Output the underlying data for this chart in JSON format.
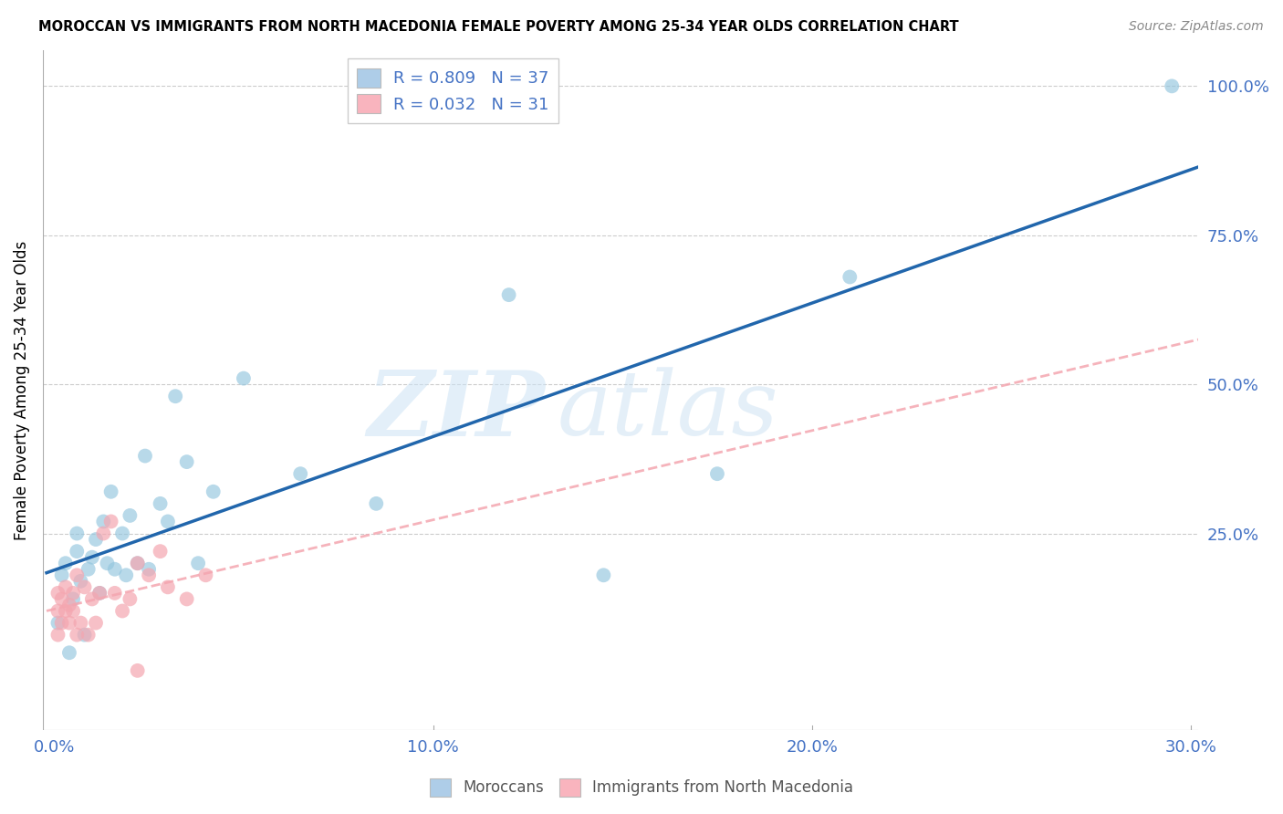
{
  "title": "MOROCCAN VS IMMIGRANTS FROM NORTH MACEDONIA FEMALE POVERTY AMONG 25-34 YEAR OLDS CORRELATION CHART",
  "source": "Source: ZipAtlas.com",
  "ylabel": "Female Poverty Among 25-34 Year Olds",
  "moroccans_R": 0.809,
  "moroccans_N": 37,
  "macedonians_R": 0.032,
  "macedonians_N": 31,
  "moroccans_color": "#92c5de",
  "macedonians_color": "#f4a6b0",
  "moroccans_line_color": "#2166ac",
  "macedonians_line_color": "#d6604d",
  "macedonians_line_color2": "#f4a6b0",
  "legend_box_color_moroccan": "#aecde8",
  "legend_box_color_macedonian": "#f9b4be",
  "watermark_zip": "ZIP",
  "watermark_atlas": "atlas",
  "mor_x": [
    0.001,
    0.002,
    0.003,
    0.004,
    0.005,
    0.006,
    0.006,
    0.007,
    0.008,
    0.009,
    0.01,
    0.011,
    0.012,
    0.013,
    0.014,
    0.015,
    0.016,
    0.018,
    0.019,
    0.02,
    0.022,
    0.024,
    0.025,
    0.028,
    0.03,
    0.032,
    0.035,
    0.038,
    0.042,
    0.05,
    0.065,
    0.085,
    0.12,
    0.145,
    0.175,
    0.21,
    0.295
  ],
  "mor_y": [
    0.1,
    0.18,
    0.2,
    0.05,
    0.14,
    0.22,
    0.25,
    0.17,
    0.08,
    0.19,
    0.21,
    0.24,
    0.15,
    0.27,
    0.2,
    0.32,
    0.19,
    0.25,
    0.18,
    0.28,
    0.2,
    0.38,
    0.19,
    0.3,
    0.27,
    0.48,
    0.37,
    0.2,
    0.32,
    0.51,
    0.35,
    0.3,
    0.65,
    0.18,
    0.35,
    0.68,
    1.0
  ],
  "mac_x": [
    0.001,
    0.001,
    0.001,
    0.002,
    0.002,
    0.003,
    0.003,
    0.004,
    0.004,
    0.005,
    0.005,
    0.006,
    0.006,
    0.007,
    0.008,
    0.009,
    0.01,
    0.011,
    0.012,
    0.013,
    0.015,
    0.016,
    0.018,
    0.02,
    0.022,
    0.025,
    0.028,
    0.03,
    0.035,
    0.04,
    0.022
  ],
  "mac_y": [
    0.12,
    0.08,
    0.15,
    0.1,
    0.14,
    0.16,
    0.12,
    0.1,
    0.13,
    0.12,
    0.15,
    0.18,
    0.08,
    0.1,
    0.16,
    0.08,
    0.14,
    0.1,
    0.15,
    0.25,
    0.27,
    0.15,
    0.12,
    0.14,
    0.2,
    0.18,
    0.22,
    0.16,
    0.14,
    0.18,
    0.02
  ],
  "xlim": [
    -0.003,
    0.302
  ],
  "ylim": [
    -0.08,
    1.06
  ],
  "xticks": [
    0.0,
    0.1,
    0.2,
    0.3
  ],
  "xticklabels": [
    "0.0%",
    "10.0%",
    "20.0%",
    "30.0%"
  ],
  "yticks_right": [
    0.25,
    0.5,
    0.75,
    1.0
  ],
  "yticklabels_right": [
    "25.0%",
    "50.0%",
    "75.0%",
    "100.0%"
  ]
}
